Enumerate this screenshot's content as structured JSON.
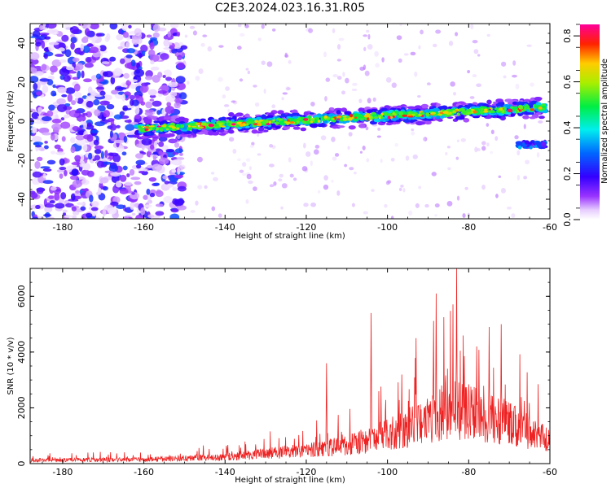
{
  "title": "C2E3.2024.023.16.31.R05",
  "chart_data": [
    {
      "type": "heatmap",
      "xlabel": "Height of straight line (km)",
      "ylabel": "Frequency (Hz)",
      "xlim": [
        -188,
        -60
      ],
      "ylim": [
        -50,
        50
      ],
      "x_ticks": [
        -180,
        -160,
        -140,
        -120,
        -100,
        -80,
        -60
      ],
      "y_ticks": [
        -40,
        -20,
        0,
        20,
        40
      ],
      "colorbar": {
        "label": "Normalized spectral amplitude",
        "range": [
          0.0,
          0.85
        ],
        "ticks": [
          0.0,
          0.2,
          0.4,
          0.6,
          0.8
        ],
        "colormap": "rainbow (white-violet-blue-cyan-green-yellow-red-magenta)"
      },
      "features": [
        {
          "description": "main echo trace",
          "x_range": [
            -162,
            -61
          ],
          "freq_start": -4,
          "freq_end": 7,
          "peak_amplitude": 0.85
        },
        {
          "description": "secondary echo",
          "x_range": [
            -68,
            -61
          ],
          "freq": -12
        },
        {
          "description": "broadband noise",
          "x_range": [
            -188,
            -150
          ],
          "freq_range": [
            -50,
            50
          ],
          "amplitude": 0.25
        }
      ]
    },
    {
      "type": "line",
      "xlabel": "Height of straight line (km)",
      "ylabel": "SNR (10 * v/v)",
      "xlim": [
        -188,
        -60
      ],
      "ylim": [
        0,
        7000
      ],
      "x_ticks": [
        -180,
        -160,
        -140,
        -120,
        -100,
        -80,
        -60
      ],
      "y_ticks": [
        0,
        2000,
        4000,
        6000
      ],
      "line_color": "#ee2222",
      "peaks": [
        {
          "x": -115,
          "y": 3600
        },
        {
          "x": -104,
          "y": 5400
        },
        {
          "x": -93,
          "y": 4500
        },
        {
          "x": -88,
          "y": 6100
        },
        {
          "x": -83,
          "y": 7000
        },
        {
          "x": -78,
          "y": 4200
        },
        {
          "x": -75,
          "y": 4900
        },
        {
          "x": -72,
          "y": 5000
        }
      ],
      "baseline": [
        {
          "x": -188,
          "y": 150
        },
        {
          "x": -160,
          "y": 180
        },
        {
          "x": -140,
          "y": 300
        },
        {
          "x": -130,
          "y": 450
        },
        {
          "x": -120,
          "y": 600
        },
        {
          "x": -110,
          "y": 800
        },
        {
          "x": -100,
          "y": 1300
        },
        {
          "x": -90,
          "y": 1900
        },
        {
          "x": -85,
          "y": 2500
        },
        {
          "x": -80,
          "y": 2300
        },
        {
          "x": -70,
          "y": 1800
        },
        {
          "x": -60,
          "y": 1000
        }
      ]
    }
  ]
}
